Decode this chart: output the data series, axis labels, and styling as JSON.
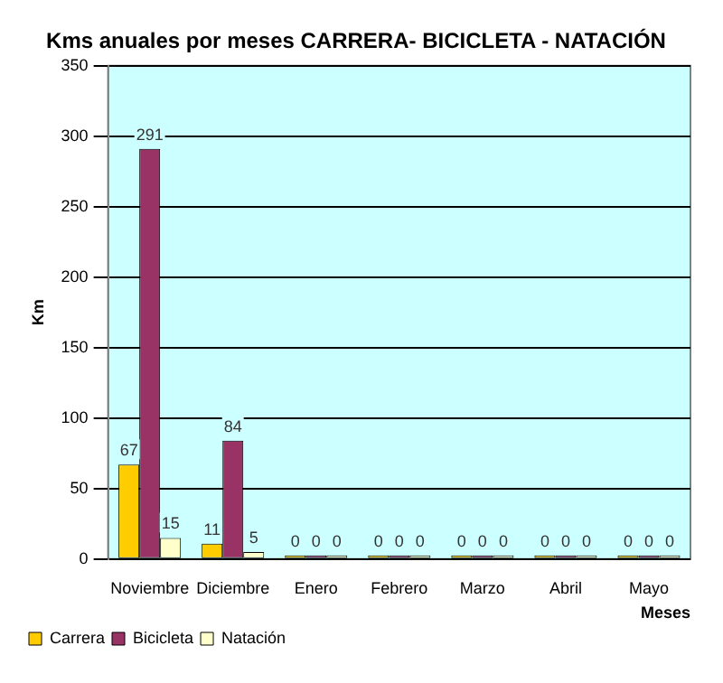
{
  "chart_data": {
    "type": "bar",
    "title": "Kms anuales por meses CARRERA- BICICLETA - NATACIÓN",
    "xlabel": "Meses",
    "ylabel": "Km",
    "categories": [
      "Noviembre",
      "Diciembre",
      "Enero",
      "Febrero",
      "Marzo",
      "Abril",
      "Mayo"
    ],
    "series": [
      {
        "name": "Carrera",
        "color": "#ffcc00",
        "values": [
          67,
          11,
          0,
          0,
          0,
          0,
          0
        ]
      },
      {
        "name": "Bicicleta",
        "color": "#993366",
        "values": [
          291,
          84,
          0,
          0,
          0,
          0,
          0
        ]
      },
      {
        "name": "Natación",
        "color": "#ffffcc",
        "values": [
          15,
          5,
          0,
          0,
          0,
          0,
          0
        ]
      }
    ],
    "ylim": [
      0,
      350
    ],
    "yticks": [
      0,
      50,
      100,
      150,
      200,
      250,
      300,
      350
    ],
    "grid": "y",
    "legend": "bottom",
    "data_labels": true
  }
}
